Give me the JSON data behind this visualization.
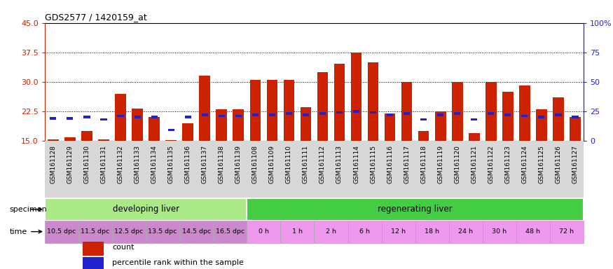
{
  "title": "GDS2577 / 1420159_at",
  "samples": [
    "GSM161128",
    "GSM161129",
    "GSM161130",
    "GSM161131",
    "GSM161132",
    "GSM161133",
    "GSM161134",
    "GSM161135",
    "GSM161136",
    "GSM161137",
    "GSM161138",
    "GSM161139",
    "GSM161108",
    "GSM161109",
    "GSM161110",
    "GSM161111",
    "GSM161112",
    "GSM161113",
    "GSM161114",
    "GSM161115",
    "GSM161116",
    "GSM161117",
    "GSM161118",
    "GSM161119",
    "GSM161120",
    "GSM161121",
    "GSM161122",
    "GSM161123",
    "GSM161124",
    "GSM161125",
    "GSM161126",
    "GSM161127"
  ],
  "count_values": [
    15.3,
    15.8,
    17.5,
    15.3,
    27.0,
    23.2,
    21.0,
    15.2,
    19.5,
    31.5,
    23.0,
    23.0,
    30.5,
    30.5,
    30.5,
    23.5,
    32.5,
    34.5,
    37.5,
    35.0,
    22.0,
    30.0,
    17.5,
    22.5,
    30.0,
    17.0,
    30.0,
    27.5,
    29.0,
    23.0,
    26.0,
    21.0
  ],
  "percentile_values": [
    19,
    19,
    20,
    18,
    21,
    20,
    20,
    9,
    20,
    22,
    21,
    21,
    22,
    22,
    23,
    22,
    23,
    24,
    25,
    24,
    22,
    23,
    18,
    22,
    23,
    18,
    23,
    22,
    21,
    20,
    22,
    20
  ],
  "ymin": 15,
  "ymax": 45,
  "yticks_left": [
    15,
    22.5,
    30,
    37.5,
    45
  ],
  "yticks_right": [
    0,
    25,
    50,
    75,
    100
  ],
  "ytick_right_labels": [
    "0",
    "25",
    "50",
    "75",
    "100%"
  ],
  "bar_color": "#cc2200",
  "percentile_color": "#2222cc",
  "chart_bg": "#ffffff",
  "label_bg": "#d8d8d8",
  "specimen_groups": [
    {
      "label": "developing liver",
      "start": 0,
      "end": 12,
      "color": "#aae888"
    },
    {
      "label": "regenerating liver",
      "start": 12,
      "end": 32,
      "color": "#44cc44"
    }
  ],
  "time_groups": [
    {
      "label": "10.5 dpc",
      "start": 0,
      "end": 2
    },
    {
      "label": "11.5 dpc",
      "start": 2,
      "end": 4
    },
    {
      "label": "12.5 dpc",
      "start": 4,
      "end": 6
    },
    {
      "label": "13.5 dpc",
      "start": 6,
      "end": 8
    },
    {
      "label": "14.5 dpc",
      "start": 8,
      "end": 10
    },
    {
      "label": "16.5 dpc",
      "start": 10,
      "end": 12
    },
    {
      "label": "0 h",
      "start": 12,
      "end": 14
    },
    {
      "label": "1 h",
      "start": 14,
      "end": 16
    },
    {
      "label": "2 h",
      "start": 16,
      "end": 18
    },
    {
      "label": "6 h",
      "start": 18,
      "end": 20
    },
    {
      "label": "12 h",
      "start": 20,
      "end": 22
    },
    {
      "label": "18 h",
      "start": 22,
      "end": 24
    },
    {
      "label": "24 h",
      "start": 24,
      "end": 26
    },
    {
      "label": "30 h",
      "start": 26,
      "end": 28
    },
    {
      "label": "48 h",
      "start": 28,
      "end": 30
    },
    {
      "label": "72 h",
      "start": 30,
      "end": 32
    }
  ],
  "time_dpc_color": "#cc88cc",
  "time_h_color": "#ee99ee",
  "legend_items": [
    {
      "label": "count",
      "color": "#cc2200"
    },
    {
      "label": "percentile rank within the sample",
      "color": "#2222cc"
    }
  ]
}
